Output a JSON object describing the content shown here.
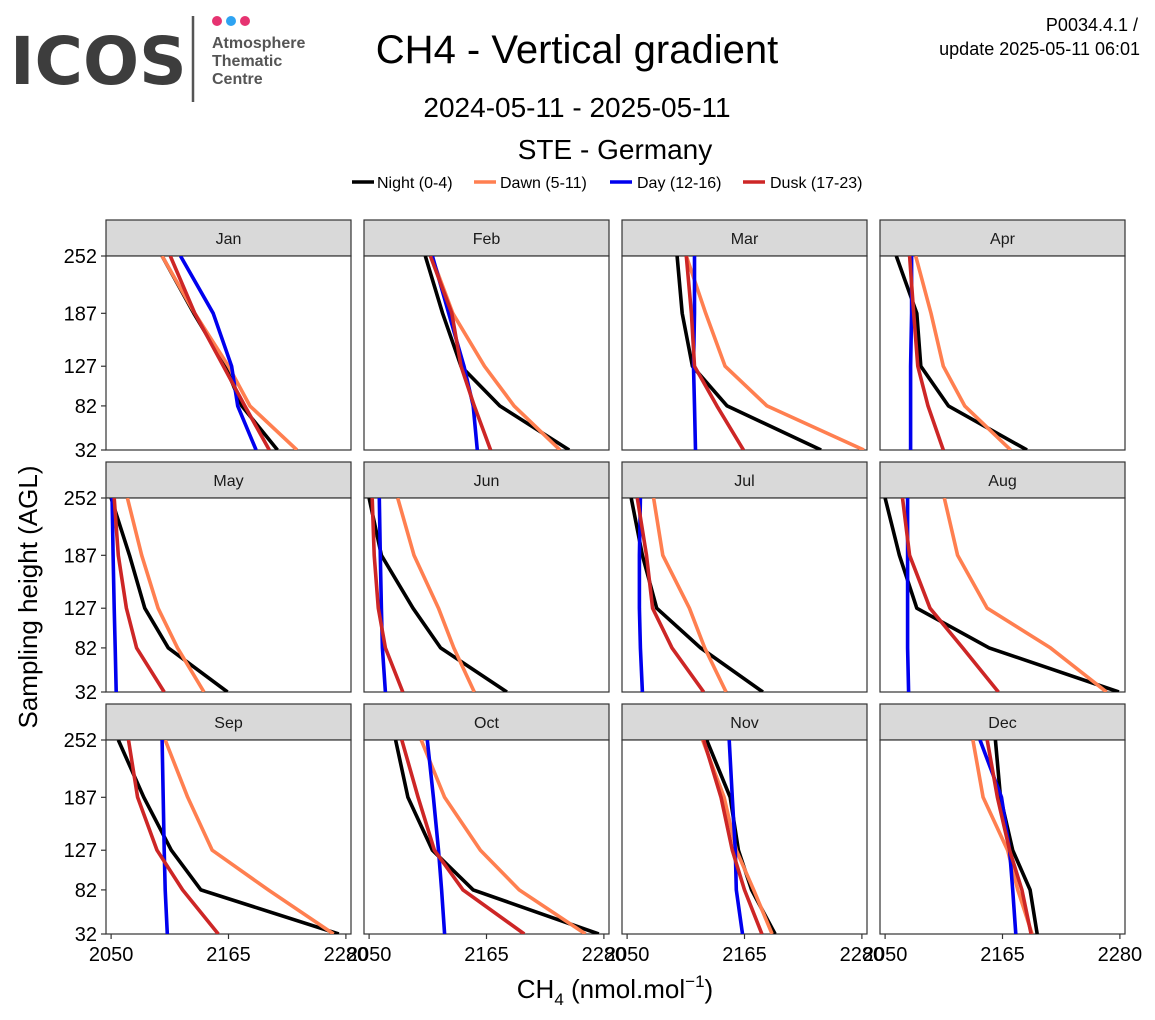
{
  "logo": {
    "wordmark": "ICOS",
    "line1": "Atmosphere",
    "line2": "Thematic",
    "line3": "Centre",
    "dot_colors": [
      "#e63371",
      "#2ea3f2",
      "#e63371"
    ]
  },
  "header": {
    "title": "CH4 - Vertical gradient",
    "period": "2024-05-11 - 2025-05-11",
    "station": "STE - Germany",
    "version": "P0034.4.1 /",
    "update": "update  2025-05-11 06:01"
  },
  "chart_data": {
    "type": "line",
    "layout": "facet 4x3 by month",
    "xlabel": "CH",
    "xlabel_sub": "4",
    "xlabel_units": " (nmol.mol",
    "xlabel_sup": "−1",
    "xlabel_close": ")",
    "ylabel": "Sampling height (AGL)",
    "xlim": [
      2045,
      2285
    ],
    "x_ticks": [
      "2050",
      "2165",
      "2280"
    ],
    "x_tick_values": [
      2050,
      2165,
      2280
    ],
    "y_ticks": [
      "32",
      "82",
      "127",
      "187",
      "252"
    ],
    "heights": [
      32,
      82,
      127,
      187,
      252
    ],
    "legend_position": "top",
    "series": [
      {
        "key": "night",
        "name": "Night (0-4)",
        "color": "#000000"
      },
      {
        "key": "dawn",
        "name": "Dawn (5-11)",
        "color": "#ff7f50"
      },
      {
        "key": "day",
        "name": "Day (12-16)",
        "color": "#0000ee"
      },
      {
        "key": "dusk",
        "name": "Dusk (17-23)",
        "color": "#cd2626"
      }
    ],
    "panels": [
      {
        "month": "Jan",
        "night": [
          2213,
          2178,
          2162,
          2131,
          2100
        ],
        "dawn": [
          2232,
          2186,
          2165,
          2132,
          2100
        ],
        "day": [
          2192,
          2174,
          2168,
          2150,
          2118
        ],
        "dusk": [
          2205,
          2181,
          2160,
          2132,
          2108
        ]
      },
      {
        "month": "Feb",
        "night": [
          2246,
          2178,
          2140,
          2122,
          2105
        ],
        "dawn": [
          2237,
          2192,
          2163,
          2132,
          2111
        ],
        "day": [
          2156,
          2152,
          2143,
          2128,
          2112
        ],
        "dusk": [
          2169,
          2153,
          2140,
          2131,
          2110
        ]
      },
      {
        "month": "Mar",
        "night": [
          2240,
          2148,
          2114,
          2104,
          2099
        ],
        "dawn": [
          2282,
          2187,
          2146,
          2127,
          2108
        ],
        "day": [
          2117,
          2116,
          2115,
          2116,
          2116
        ],
        "dusk": [
          2164,
          2138,
          2116,
          2113,
          2108
        ]
      },
      {
        "month": "Apr",
        "night": [
          2189,
          2112,
          2085,
          2081,
          2061
        ],
        "dawn": [
          2173,
          2128,
          2107,
          2095,
          2080
        ],
        "day": [
          2075,
          2075,
          2075,
          2076,
          2076
        ],
        "dusk": [
          2107,
          2092,
          2082,
          2078,
          2074
        ]
      },
      {
        "month": "May",
        "night": [
          2164,
          2106,
          2083,
          2068,
          2050
        ],
        "dawn": [
          2141,
          2115,
          2096,
          2080,
          2066
        ],
        "day": [
          2055,
          2054,
          2053,
          2052,
          2051
        ],
        "dusk": [
          2102,
          2075,
          2065,
          2057,
          2053
        ]
      },
      {
        "month": "Jun",
        "night": [
          2185,
          2120,
          2093,
          2062,
          2050
        ],
        "dawn": [
          2153,
          2133,
          2118,
          2094,
          2078
        ],
        "day": [
          2066,
          2063,
          2062,
          2061,
          2060
        ],
        "dusk": [
          2083,
          2066,
          2059,
          2055,
          2053
        ]
      },
      {
        "month": "Jul",
        "night": [
          2183,
          2122,
          2079,
          2065,
          2054
        ],
        "dawn": [
          2147,
          2126,
          2111,
          2085,
          2076
        ],
        "day": [
          2065,
          2063,
          2062,
          2062,
          2063
        ],
        "dusk": [
          2125,
          2094,
          2075,
          2069,
          2060
        ]
      },
      {
        "month": "Aug",
        "night": [
          2279,
          2152,
          2081,
          2064,
          2050
        ],
        "dawn": [
          2267,
          2212,
          2150,
          2121,
          2108
        ],
        "day": [
          2073,
          2072,
          2072,
          2072,
          2072
        ],
        "dusk": [
          2161,
          2126,
          2094,
          2074,
          2067
        ]
      },
      {
        "month": "Sep",
        "night": [
          2273,
          2138,
          2109,
          2082,
          2057
        ],
        "dawn": [
          2268,
          2204,
          2149,
          2125,
          2103
        ],
        "day": [
          2105,
          2103,
          2102,
          2101,
          2100
        ],
        "dusk": [
          2155,
          2120,
          2095,
          2076,
          2067
        ]
      },
      {
        "month": "Oct",
        "night": [
          2275,
          2152,
          2112,
          2088,
          2076
        ],
        "dawn": [
          2262,
          2197,
          2159,
          2124,
          2101
        ],
        "day": [
          2124,
          2121,
          2118,
          2113,
          2107
        ],
        "dusk": [
          2202,
          2142,
          2114,
          2098,
          2082
        ]
      },
      {
        "month": "Nov",
        "night": [
          2195,
          2172,
          2159,
          2151,
          2128
        ],
        "dawn": [
          2192,
          2174,
          2157,
          2145,
          2124
        ],
        "day": [
          2163,
          2157,
          2156,
          2153,
          2150
        ],
        "dusk": [
          2182,
          2165,
          2153,
          2142,
          2125
        ]
      },
      {
        "month": "Dec",
        "night": [
          2199,
          2192,
          2175,
          2163,
          2158
        ],
        "dawn": [
          2194,
          2180,
          2170,
          2146,
          2136
        ],
        "day": [
          2178,
          2175,
          2172,
          2164,
          2143
        ],
        "dusk": [
          2193,
          2184,
          2172,
          2160,
          2150
        ]
      }
    ]
  }
}
